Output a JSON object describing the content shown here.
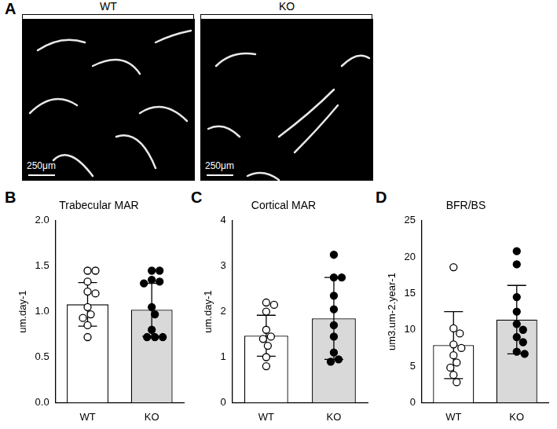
{
  "figure": {
    "panel_labels": [
      "A",
      "B",
      "C",
      "D"
    ],
    "image_panel": {
      "titles": [
        "WT",
        "KO"
      ],
      "scale_bar": "250μm"
    }
  },
  "chart_data": [
    {
      "type": "bar",
      "title": "Trabecular MAR",
      "y_label": "um.day-1",
      "categories": [
        "WT",
        "KO"
      ],
      "values": [
        1.08,
        1.02
      ],
      "error": [
        0.24,
        0.29
      ],
      "points": [
        [
          1.45,
          1.45,
          1.33,
          1.22,
          1.2,
          1.05,
          0.97,
          0.93,
          0.85,
          0.72
        ],
        [
          1.45,
          1.45,
          1.35,
          1.33,
          1.31,
          1.05,
          0.97,
          0.8,
          0.72,
          0.72,
          0.72
        ]
      ],
      "colors": [
        "#ffffff",
        "#d9d9d9"
      ],
      "point_colors": [
        "#ffffff",
        "#000000"
      ],
      "marker": "circle",
      "ylim": [
        0,
        2
      ],
      "yticks": [
        {
          "value": 0,
          "label": "0.0"
        },
        0.5,
        {
          "value": 1,
          "label": "1.0"
        },
        1.5,
        {
          "value": 2,
          "label": "2.0"
        }
      ],
      "grid": false
    },
    {
      "type": "bar",
      "title": "Cortical MAR",
      "y_label": "um.day-1",
      "categories": [
        "WT",
        "KO"
      ],
      "values": [
        1.47,
        1.85
      ],
      "error": [
        0.45,
        0.9
      ],
      "points": [
        [
          2.2,
          2.15,
          2.0,
          1.6,
          1.45,
          1.4,
          1.25,
          1.0,
          0.8
        ],
        [
          3.25,
          2.75,
          2.75,
          2.35,
          2.05,
          1.7,
          1.45,
          1.1,
          0.95,
          0.9
        ]
      ],
      "colors": [
        "#ffffff",
        "#d9d9d9"
      ],
      "point_colors": [
        "#ffffff",
        "#000000"
      ],
      "marker": "circle",
      "ylim": [
        0,
        4
      ],
      "yticks": [
        0,
        1,
        2,
        3,
        4
      ],
      "grid": false
    },
    {
      "type": "bar",
      "title": "BFR/BS",
      "y_label": "um3.um-2.year-1",
      "categories": [
        "WT",
        "KO"
      ],
      "values": [
        7.9,
        11.4
      ],
      "error": [
        4.6,
        4.7
      ],
      "points": [
        [
          18.6,
          10.2,
          9.5,
          8.0,
          7.5,
          6.5,
          5.5,
          4.8,
          3.8,
          2.8
        ],
        [
          20.8,
          19.0,
          14.5,
          12.5,
          10.8,
          10.0,
          9.0,
          8.3,
          7.0,
          6.7
        ]
      ],
      "colors": [
        "#ffffff",
        "#d9d9d9"
      ],
      "point_colors": [
        "#ffffff",
        "#000000"
      ],
      "marker": "circle",
      "ylim": [
        0,
        25
      ],
      "yticks": [
        0,
        5,
        10,
        15,
        20,
        25
      ],
      "grid": false
    }
  ]
}
